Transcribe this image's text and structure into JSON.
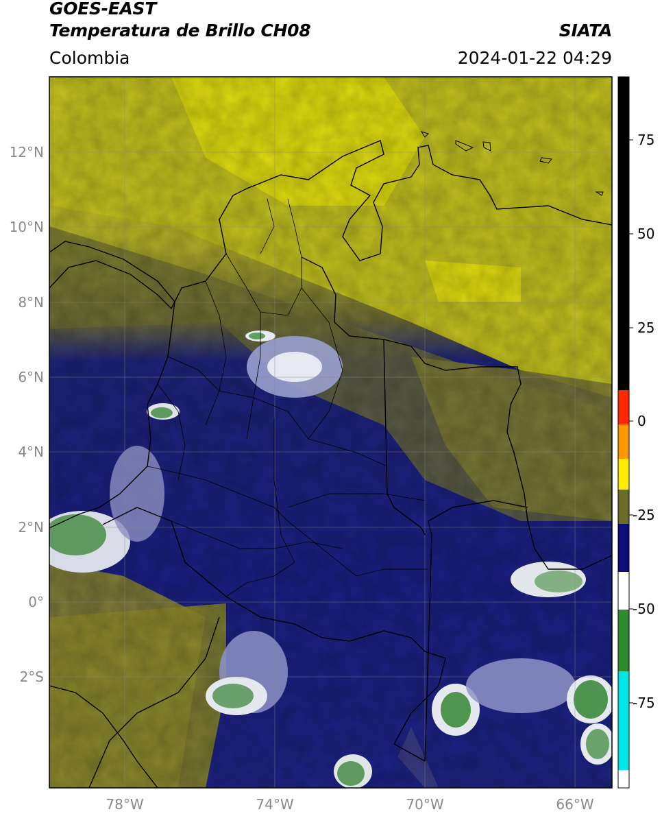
{
  "header": {
    "satellite": "GOES-EAST",
    "product": "Temperatura de Brillo CH08",
    "region": "Colombia",
    "agency": "SIATA",
    "datetime": "2024-01-22 04:29"
  },
  "map": {
    "lon_range": [
      -80,
      -65
    ],
    "lat_range": [
      -5,
      14
    ],
    "lon_ticks": [
      {
        "value": -78,
        "label": "78°W"
      },
      {
        "value": -74,
        "label": "74°W"
      },
      {
        "value": -70,
        "label": "70°W"
      },
      {
        "value": -66,
        "label": "66°W"
      }
    ],
    "lat_ticks": [
      {
        "value": 12,
        "label": "12°N"
      },
      {
        "value": 10,
        "label": "10°N"
      },
      {
        "value": 8,
        "label": "8°N"
      },
      {
        "value": 6,
        "label": "6°N"
      },
      {
        "value": 4,
        "label": "4°N"
      },
      {
        "value": 2,
        "label": "2°N"
      },
      {
        "value": 0,
        "label": "0°"
      },
      {
        "value": -2,
        "label": "2°S"
      }
    ]
  },
  "colorbar": {
    "range": [
      -95,
      90
    ],
    "ticks": [
      {
        "value": 75,
        "label": "75"
      },
      {
        "value": 50,
        "label": "50"
      },
      {
        "value": 25,
        "label": "25"
      },
      {
        "value": 0,
        "label": "0"
      },
      {
        "value": -25,
        "label": "-25"
      },
      {
        "value": -50,
        "label": "-50"
      },
      {
        "value": -75,
        "label": "-75"
      }
    ],
    "colors": {
      "black": "#000000",
      "red": "#ff2a00",
      "orange": "#ff9900",
      "yellow": "#ffee00",
      "olive": "#6b6b2a",
      "navy": "#0d0d7a",
      "white": "#ffffff",
      "green": "#2e8b2e",
      "cyan": "#00e5e5"
    }
  }
}
